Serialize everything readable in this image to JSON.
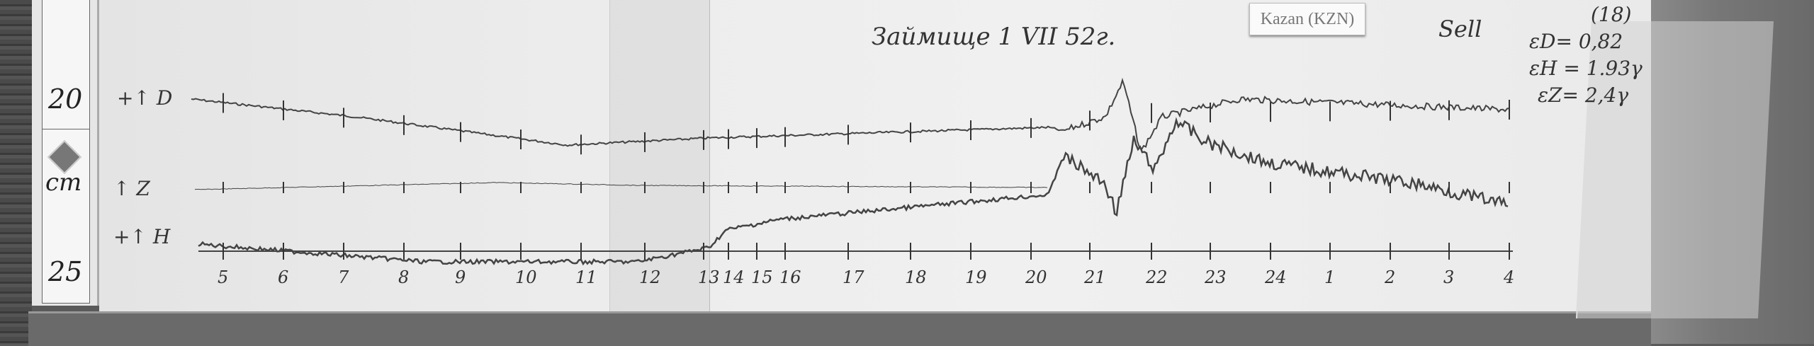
{
  "ruler": {
    "top_number": "20",
    "unit": "cm",
    "bottom_number": "25"
  },
  "station_label": "Kazan (KZN)",
  "header": {
    "title": "Займище 1 VII 52г.",
    "signature": "Sell",
    "sheet_number": "(18)",
    "scale_values": [
      "εD= 0,82",
      "εH = 1.93γ",
      "εZ= 2,4γ"
    ]
  },
  "trace_labels": {
    "D": "+↑ D",
    "Z": "↑ Z",
    "H": "+↑ H"
  },
  "hour_marks": [
    "5",
    "6",
    "7",
    "8",
    "9",
    "10",
    "11",
    "12",
    "13",
    "14",
    "15",
    "16",
    "17",
    "18",
    "19",
    "20",
    "21",
    "22",
    "23",
    "24",
    "1",
    "2",
    "3",
    "4"
  ],
  "colors": {
    "paper": "#ececec",
    "ink": "#333333",
    "trace": "#444444"
  }
}
